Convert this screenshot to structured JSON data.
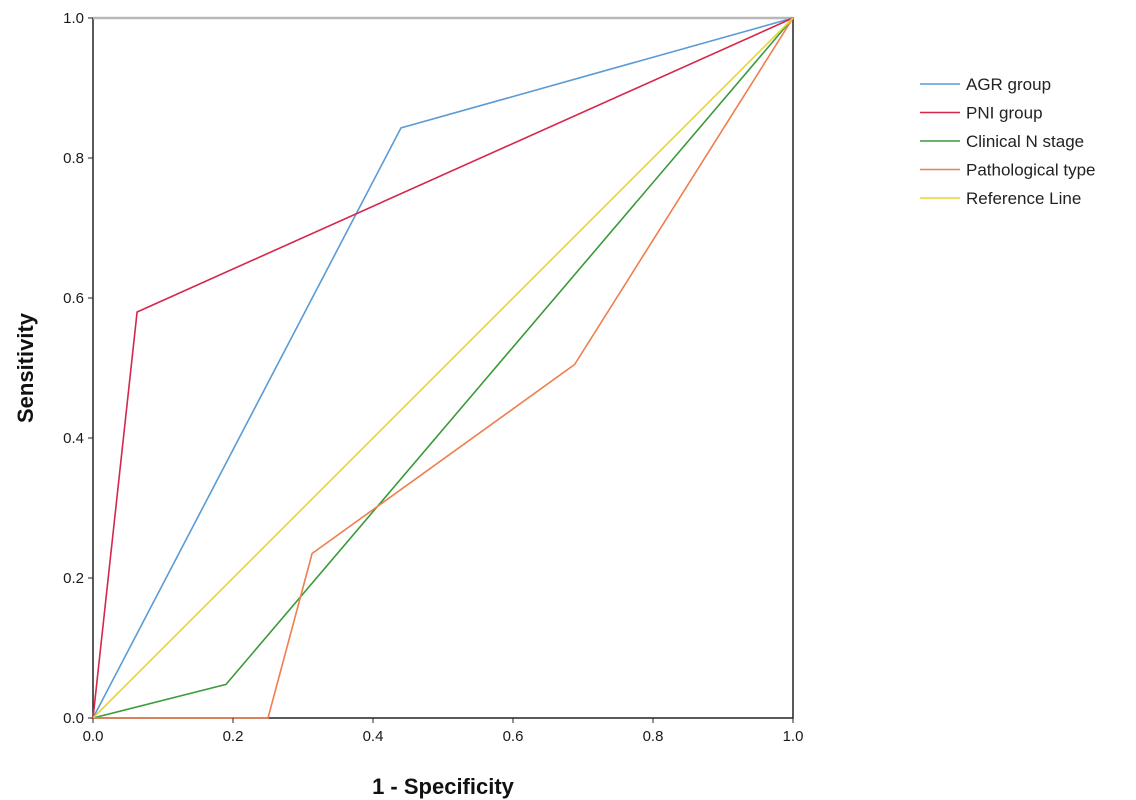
{
  "chart_data": {
    "type": "line",
    "title": "",
    "xlabel": "1 - Specificity",
    "ylabel": "Sensitivity",
    "xlim": [
      0,
      1
    ],
    "ylim": [
      0,
      1
    ],
    "xticks": [
      "0.0",
      "0.2",
      "0.4",
      "0.6",
      "0.8",
      "1.0"
    ],
    "yticks": [
      "0.0",
      "0.2",
      "0.4",
      "0.6",
      "0.8",
      "1.0"
    ],
    "grid": false,
    "legend_position": "top-right-outside",
    "series": [
      {
        "name": "AGR group",
        "color": "#5b9bd5",
        "x": [
          0,
          0.44,
          1
        ],
        "y": [
          0,
          0.843,
          1
        ]
      },
      {
        "name": "PNI group",
        "color": "#d6264a",
        "x": [
          0,
          0.063,
          1
        ],
        "y": [
          0,
          0.58,
          1
        ]
      },
      {
        "name": "Clinical N stage",
        "color": "#3a9a3a",
        "x": [
          0,
          0.19,
          1
        ],
        "y": [
          0,
          0.048,
          1
        ]
      },
      {
        "name": "Pathological type",
        "color": "#f07d4e",
        "x": [
          0,
          0.25,
          0.313,
          0.688,
          1
        ],
        "y": [
          0,
          0,
          0.235,
          0.505,
          1
        ]
      },
      {
        "name": "Reference Line",
        "color": "#e6d62e",
        "x": [
          0,
          1
        ],
        "y": [
          0,
          1
        ]
      }
    ]
  }
}
